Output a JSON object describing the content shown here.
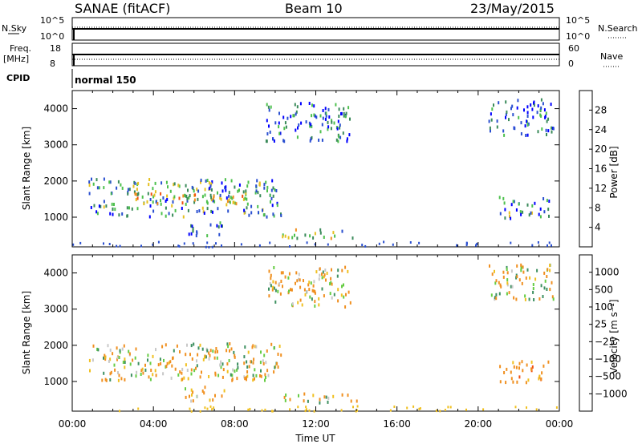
{
  "header": {
    "station": "SANAE (fitACF)",
    "beam": "Beam 10",
    "date": "23/May/2015"
  },
  "strips": {
    "nsky_label": "N.Sky",
    "nsky_tick_hi": "10^5",
    "nsky_tick_lo": "10^0",
    "nsearch_label": "N.Search",
    "nsearch_tick_hi": "10^5",
    "nsearch_tick_lo": "10^0",
    "freq_label": "Freq.",
    "freq_unit": "[MHz]",
    "freq_tick_hi": "18",
    "freq_tick_lo": "8",
    "nave_label": "Nave",
    "nave_tick_hi": "60",
    "nave_tick_lo": "0",
    "cpid_label": "CPID",
    "cpid_value": "normal 150"
  },
  "axes": {
    "xlabel": "Time UT",
    "ylabel": "Slant Range [km]",
    "xticks": [
      "00:00",
      "04:00",
      "08:00",
      "12:00",
      "16:00",
      "20:00",
      "00:00"
    ],
    "yticks": [
      "1000",
      "2000",
      "3000",
      "4000"
    ]
  },
  "colorbars": {
    "power": {
      "label": "Power [dB]",
      "ticks": [
        "4",
        "8",
        "12",
        "16",
        "20",
        "24",
        "28"
      ],
      "colors": [
        "#0000ff",
        "#2a4fd0",
        "#3a8a5a",
        "#4cc04c",
        "#e6c020",
        "#f09020",
        "#f05010",
        "#ff0000"
      ]
    },
    "velocity": {
      "label": "Velocity [m s⁻¹]",
      "ticks": [
        "1000",
        "500",
        "100",
        "25",
        "−25",
        "−100",
        "−500",
        "−1000"
      ],
      "colors": [
        "#1f35c8",
        "#3b66c0",
        "#3d9060",
        "#66cc44",
        "#c8c8c8",
        "#f0c020",
        "#f09020",
        "#f05010",
        "#ff0000"
      ]
    }
  },
  "chart_data": [
    {
      "type": "heatmap",
      "title": "Power",
      "xlabel": "Time UT",
      "ylabel": "Slant Range [km]",
      "x_range_hours": [
        0,
        24
      ],
      "ylim": [
        180,
        4500
      ],
      "colorbar_range": [
        0,
        30
      ],
      "echo_regions": [
        {
          "t_start": 0.8,
          "t_end": 10.3,
          "range_start": 1050,
          "range_end": 2100,
          "typical_power": 9
        },
        {
          "t_start": 3.0,
          "t_end": 8.5,
          "range_start": 1400,
          "range_end": 1700,
          "typical_power": 18
        },
        {
          "t_start": 10.3,
          "t_end": 14.0,
          "range_start": 450,
          "range_end": 700,
          "typical_power": 14
        },
        {
          "t_start": 9.5,
          "t_end": 13.7,
          "range_start": 3100,
          "range_end": 4200,
          "typical_power": 6
        },
        {
          "t_start": 20.5,
          "t_end": 23.7,
          "range_start": 3300,
          "range_end": 4300,
          "typical_power": 5
        },
        {
          "t_start": 21.0,
          "t_end": 23.5,
          "range_start": 1000,
          "range_end": 1600,
          "typical_power": 7
        },
        {
          "t_start": 5.5,
          "t_end": 7.5,
          "range_start": 500,
          "range_end": 900,
          "typical_power": 6
        }
      ]
    },
    {
      "type": "heatmap",
      "title": "Velocity",
      "xlabel": "Time UT",
      "ylabel": "Slant Range [km]",
      "x_range_hours": [
        0,
        24
      ],
      "ylim": [
        180,
        4500
      ],
      "colorbar_range": [
        -1000,
        1000
      ],
      "echo_regions": [
        {
          "t_start": 0.8,
          "t_end": 10.3,
          "range_start": 1050,
          "range_end": 2100,
          "typical_velocity": -80
        },
        {
          "t_start": 10.3,
          "t_end": 14.0,
          "range_start": 450,
          "range_end": 700,
          "typical_velocity": -30
        },
        {
          "t_start": 9.5,
          "t_end": 13.7,
          "range_start": 3100,
          "range_end": 4200,
          "typical_velocity": -100
        },
        {
          "t_start": 20.5,
          "t_end": 23.7,
          "range_start": 3300,
          "range_end": 4300,
          "typical_velocity": -60
        },
        {
          "t_start": 21.0,
          "t_end": 23.5,
          "range_start": 1000,
          "range_end": 1600,
          "typical_velocity": -300
        },
        {
          "t_start": 5.5,
          "t_end": 7.5,
          "range_start": 500,
          "range_end": 900,
          "typical_velocity": -150
        }
      ]
    }
  ]
}
